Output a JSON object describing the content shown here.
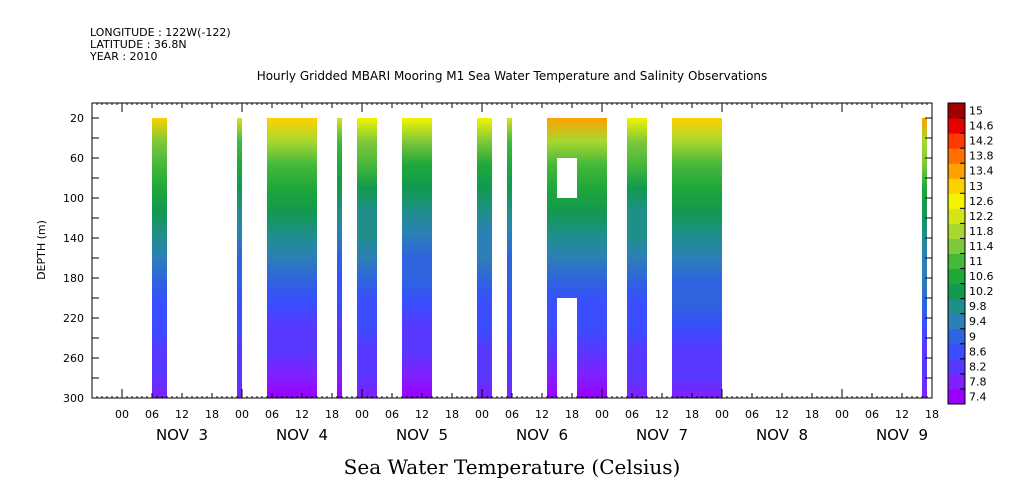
{
  "header": {
    "longitude": "LONGITUDE : 122W(-122)",
    "latitude": "LATITUDE : 36.8N",
    "year": "YEAR : 2010"
  },
  "chart_data": {
    "type": "heatmap",
    "title": "Hourly Gridded MBARI Mooring M1 Sea Water Temperature and Salinity Observations",
    "variable_label": "Sea Water Temperature (Celsius)",
    "ylabel": "DEPTH (m)",
    "x_start_hour": -6,
    "x_end_hour": 162,
    "ylim": [
      300,
      5
    ],
    "y_ticks": [
      20,
      60,
      100,
      140,
      180,
      220,
      260,
      300
    ],
    "x_hour_tick_labels": [
      "00",
      "06",
      "12",
      "18",
      "00",
      "06",
      "12",
      "18",
      "00",
      "06",
      "12",
      "18",
      "00",
      "06",
      "12",
      "18",
      "00",
      "06",
      "12",
      "18",
      "00",
      "06",
      "12",
      "18",
      "00",
      "06",
      "12",
      "18"
    ],
    "x_day_labels": [
      {
        "label": "NOV  3",
        "hour": 12
      },
      {
        "label": "NOV  4",
        "hour": 36
      },
      {
        "label": "NOV  5",
        "hour": 60
      },
      {
        "label": "NOV  6",
        "hour": 84
      },
      {
        "label": "NOV  7",
        "hour": 108
      },
      {
        "label": "NOV  8",
        "hour": 132
      },
      {
        "label": "NOV  9",
        "hour": 156
      }
    ],
    "colorbar": {
      "labels": [
        "15",
        "14.6",
        "14.2",
        "13.8",
        "13.4",
        "13",
        "12.6",
        "12.2",
        "11.8",
        "11.4",
        "11",
        "10.6",
        "10.2",
        "9.8",
        "9.4",
        "9",
        "8.6",
        "8.2",
        "7.8",
        "7.4"
      ],
      "min": 7.2,
      "max": 15.2,
      "colors": [
        "#9a00ff",
        "#7f20ff",
        "#5838ff",
        "#3a4dff",
        "#2f63e0",
        "#2c7fb8",
        "#1f8f8a",
        "#12994f",
        "#1fa83a",
        "#45b83a",
        "#7fc83a",
        "#a8d830",
        "#d4e61a",
        "#f4f400",
        "#ffd000",
        "#ffa000",
        "#ff7000",
        "#ff3a00",
        "#e60000",
        "#a00000"
      ]
    },
    "data_blocks": [
      {
        "start_hour": 6,
        "end_hour": 9,
        "depth_top": 20,
        "depth_bottom": 300,
        "surface_temp": 12.8,
        "bottom_temp": 7.8
      },
      {
        "start_hour": 23,
        "end_hour": 24,
        "depth_top": 20,
        "depth_bottom": 300,
        "surface_temp": 12.2,
        "bottom_temp": 7.8
      },
      {
        "start_hour": 29,
        "end_hour": 39,
        "depth_top": 20,
        "depth_bottom": 300,
        "surface_temp": 13.0,
        "bottom_temp": 7.6
      },
      {
        "start_hour": 43,
        "end_hour": 44,
        "depth_top": 20,
        "depth_bottom": 300,
        "surface_temp": 12.2,
        "bottom_temp": 7.6
      },
      {
        "start_hour": 47,
        "end_hour": 51,
        "depth_top": 20,
        "depth_bottom": 300,
        "surface_temp": 12.6,
        "bottom_temp": 7.8
      },
      {
        "start_hour": 56,
        "end_hour": 62,
        "depth_top": 20,
        "depth_bottom": 300,
        "surface_temp": 12.6,
        "bottom_temp": 7.6
      },
      {
        "start_hour": 71,
        "end_hour": 74,
        "depth_top": 20,
        "depth_bottom": 300,
        "surface_temp": 12.4,
        "bottom_temp": 7.8
      },
      {
        "start_hour": 77,
        "end_hour": 78,
        "depth_top": 20,
        "depth_bottom": 300,
        "surface_temp": 12.2,
        "bottom_temp": 7.8
      },
      {
        "start_hour": 85,
        "end_hour": 97,
        "depth_top": 20,
        "depth_bottom": 300,
        "surface_temp": 13.2,
        "bottom_temp": 7.6
      },
      {
        "start_hour": 101,
        "end_hour": 105,
        "depth_top": 20,
        "depth_bottom": 300,
        "surface_temp": 12.6,
        "bottom_temp": 7.8
      },
      {
        "start_hour": 110,
        "end_hour": 120,
        "depth_top": 20,
        "depth_bottom": 300,
        "surface_temp": 13.0,
        "bottom_temp": 7.8
      },
      {
        "start_hour": 160,
        "end_hour": 161,
        "depth_top": 20,
        "depth_bottom": 300,
        "surface_temp": 13.4,
        "bottom_temp": 7.8
      }
    ],
    "missing_blocks": [
      {
        "start_hour": 87,
        "end_hour": 91,
        "depth_top": 60,
        "depth_bottom": 100
      },
      {
        "start_hour": 87,
        "end_hour": 91,
        "depth_top": 200,
        "depth_bottom": 300
      }
    ]
  }
}
